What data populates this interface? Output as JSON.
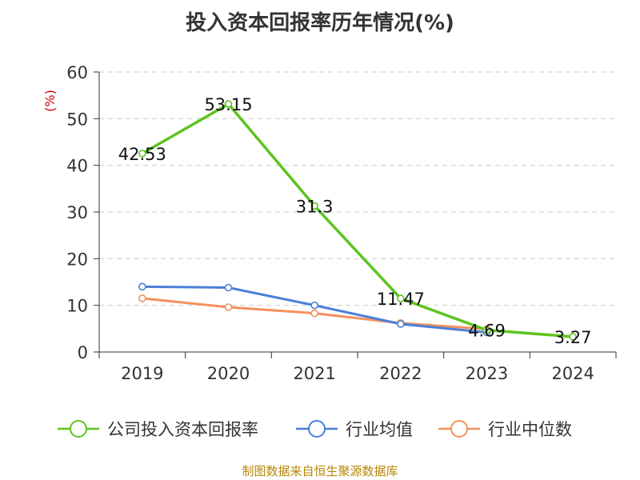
{
  "chart_data": {
    "type": "line",
    "title": "投入资本回报率历年情况(%)",
    "ylabel": "(%)",
    "xlabel": "",
    "ylim": [
      0,
      60
    ],
    "yticks": [
      0,
      10,
      20,
      30,
      40,
      50,
      60
    ],
    "categories": [
      "2019",
      "2020",
      "2021",
      "2022",
      "2023",
      "2024"
    ],
    "grid": true,
    "legend_position": "bottom",
    "series": [
      {
        "name": "公司投入资本回报率",
        "color": "#5cc41e",
        "values": [
          42.53,
          53.15,
          31.3,
          11.47,
          4.69,
          3.27
        ],
        "labels": [
          "42.53",
          "53.15",
          "31.3",
          "11.47",
          "4.69",
          "3.27"
        ]
      },
      {
        "name": "行业均值",
        "color": "#4a7fd8",
        "values": [
          14.0,
          13.8,
          10.0,
          6.0,
          4.2,
          null
        ]
      },
      {
        "name": "行业中位数",
        "color": "#f4915a",
        "values": [
          11.5,
          9.6,
          8.3,
          6.2,
          4.9,
          null
        ]
      }
    ]
  },
  "source_text": "制图数据来自恒生聚源数据库"
}
